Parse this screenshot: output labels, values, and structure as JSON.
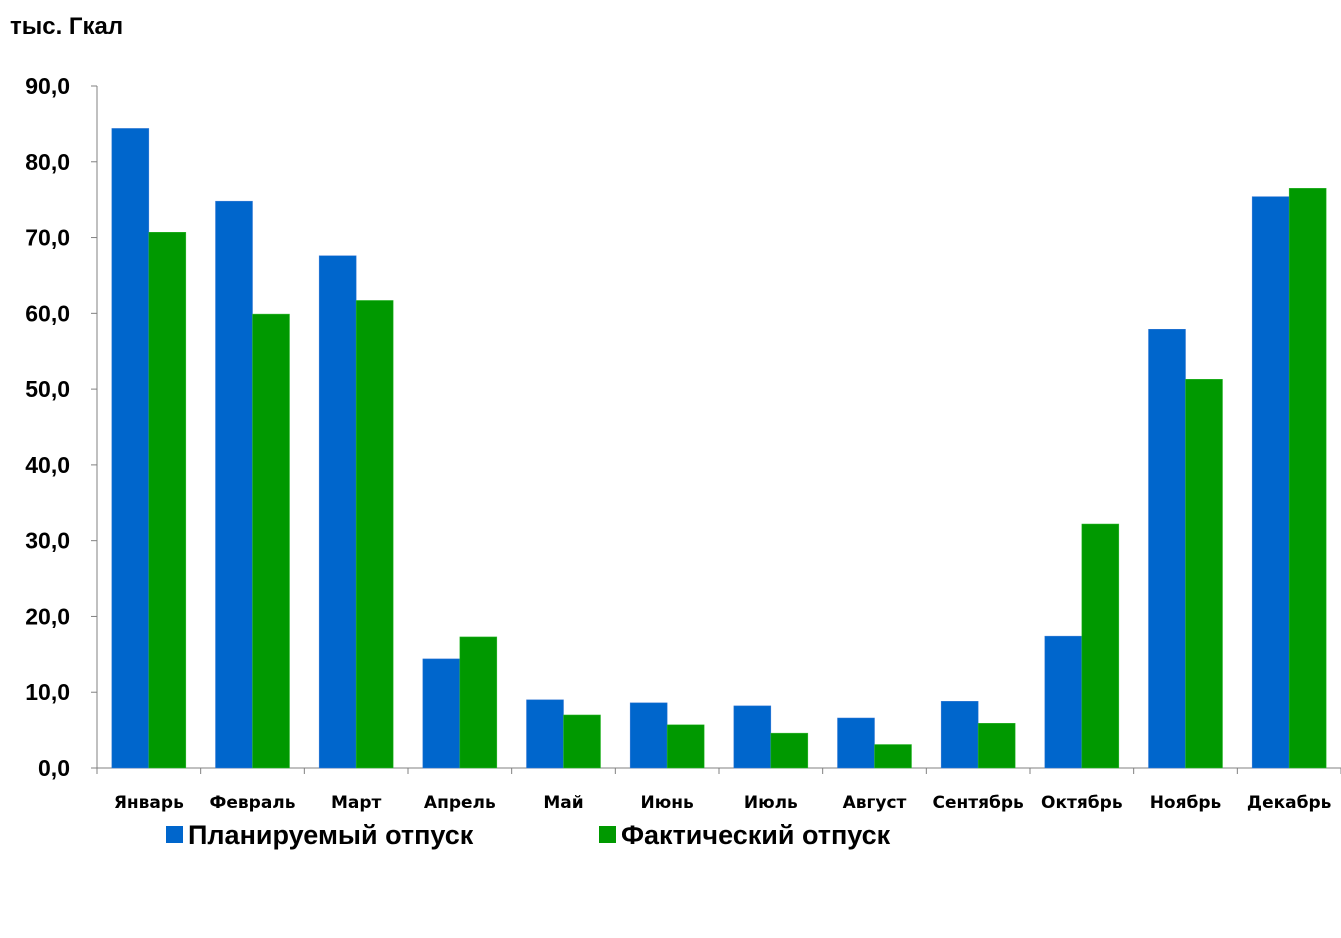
{
  "chart_data": {
    "type": "bar",
    "unit_label": "тыс. Гкал",
    "categories": [
      "Январь",
      "Февраль",
      "Март",
      "Апрель",
      "Май",
      "Июнь",
      "Июль",
      "Август",
      "Сентябрь",
      "Октябрь",
      "Ноябрь",
      "Декабрь"
    ],
    "series": [
      {
        "name": "Планируемый отпуск",
        "color": "#0066CC",
        "values": [
          84.4,
          74.8,
          67.6,
          14.4,
          9.0,
          8.6,
          8.2,
          6.6,
          8.8,
          17.4,
          57.9,
          75.4
        ]
      },
      {
        "name": "Фактический отпуск",
        "color": "#009900",
        "values": [
          70.7,
          59.9,
          61.7,
          17.3,
          7.0,
          5.7,
          4.6,
          3.1,
          5.9,
          32.2,
          51.3,
          76.5
        ]
      }
    ],
    "ylim": [
      0,
      90
    ],
    "yticks": [
      "0,0",
      "10,0",
      "20,0",
      "30,0",
      "40,0",
      "50,0",
      "60,0",
      "70,0",
      "80,0",
      "90,0"
    ],
    "grid": false,
    "legend_position": "bottom"
  }
}
